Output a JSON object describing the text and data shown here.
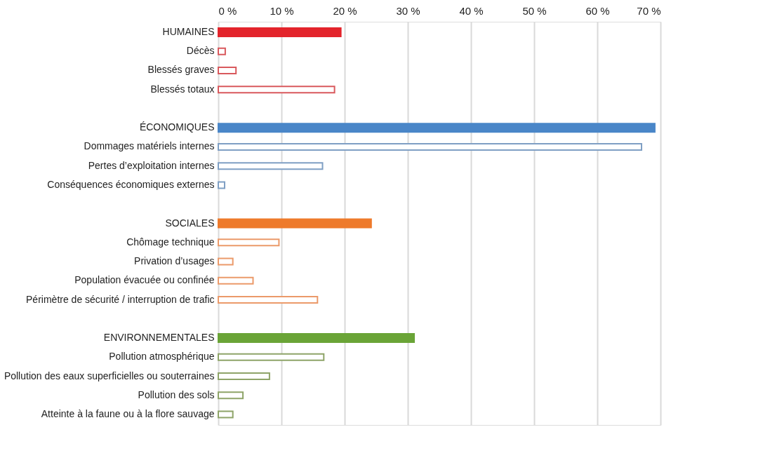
{
  "chart_data": {
    "type": "bar",
    "orientation": "horizontal",
    "categories": [
      "HUMAINES",
      "Décès",
      "Blessés graves",
      "Blessés totaux",
      null,
      "ÉCONOMIQUES",
      "Dommages matériels internes",
      "Pertes d’exploitation internes",
      "Conséquences économiques externes",
      null,
      "SOCIALES",
      "Chômage technique",
      "Privation d’usages",
      "Population évacuée ou confinée",
      "Périmètre de sécurité / interruption de trafic",
      null,
      "ENVIRONNEMENTALES",
      "Pollution atmosphérique",
      "Pollution des eaux superficielles ou souterraines",
      "Pollution des sols",
      "Atteinte à la faune ou à la flore sauvage"
    ],
    "series": [
      {
        "values": [
          19.4,
          null,
          null,
          null,
          null,
          69.1,
          null,
          null,
          null,
          null,
          24.2,
          null,
          null,
          null,
          null,
          null,
          31.0,
          null,
          null,
          null,
          null
        ],
        "colors": [
          "#e3242b",
          null,
          null,
          null,
          null,
          "#4a86c8",
          null,
          null,
          null,
          null,
          "#ee7a2b",
          null,
          null,
          null,
          null,
          null,
          "#6aa437",
          null,
          null,
          null,
          null
        ]
      },
      {
        "values": [
          null,
          1.1,
          2.8,
          18.4,
          null,
          null,
          67.0,
          16.5,
          1.0,
          null,
          null,
          9.6,
          2.3,
          5.5,
          15.7,
          null,
          null,
          16.7,
          8.1,
          3.9,
          2.3
        ],
        "colors": [
          null,
          "#d9595d",
          "#d9595d",
          "#d9595d",
          null,
          null,
          "#7f9fc4",
          "#7f9fc4",
          "#7f9fc4",
          null,
          null,
          "#eb9a6a",
          "#eb9a6a",
          "#eb9a6a",
          "#eb9a6a",
          null,
          null,
          "#8ea468",
          "#8ea468",
          "#8ea468",
          "#8ea468"
        ]
      }
    ],
    "xlim": [
      0,
      70
    ],
    "xticks": [
      {
        "value": 0,
        "label": "0 %"
      },
      {
        "value": 10,
        "label": "10 %"
      },
      {
        "value": 20,
        "label": "20 %"
      },
      {
        "value": 30,
        "label": "30 %"
      },
      {
        "value": 40,
        "label": "40 %"
      },
      {
        "value": 50,
        "label": "50 %"
      },
      {
        "value": 60,
        "label": "60 %"
      },
      {
        "value": 70,
        "label": "70 %"
      }
    ],
    "grid": "x"
  }
}
